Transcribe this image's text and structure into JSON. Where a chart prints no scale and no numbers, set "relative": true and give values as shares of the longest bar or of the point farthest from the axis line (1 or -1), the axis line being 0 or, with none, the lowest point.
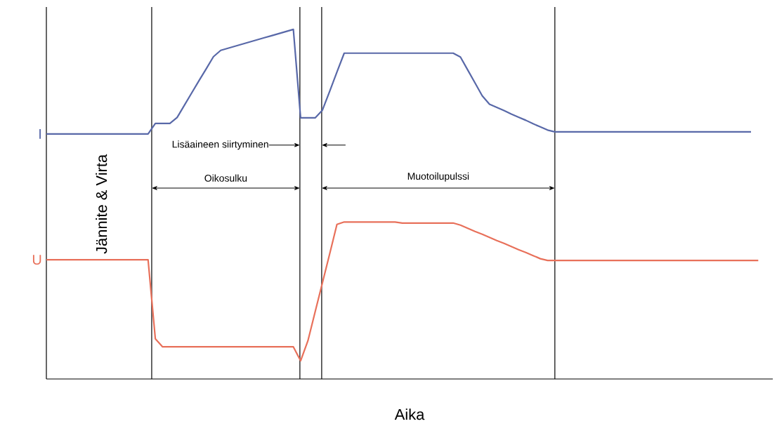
{
  "chart_data": {
    "type": "line",
    "relative": true,
    "xlabel": "Aika",
    "ylabel": "Jännite & Virta",
    "legend": false,
    "grid": "x",
    "marker": "none",
    "line_style": "solid",
    "categories": [
      null,
      null,
      null,
      null,
      null,
      null,
      null,
      null,
      null,
      null,
      null,
      null,
      null,
      null,
      null,
      null,
      null,
      null,
      null,
      null,
      null,
      null,
      null,
      null,
      null,
      null,
      null,
      null,
      null,
      null,
      null,
      null,
      null,
      null,
      null,
      null,
      null,
      null,
      null,
      null,
      null,
      null,
      null,
      null,
      null,
      null,
      null,
      null,
      null,
      null,
      null,
      null,
      null,
      null,
      null,
      null,
      null,
      null,
      null,
      null,
      null,
      null,
      null,
      null,
      null,
      null,
      null,
      null,
      null,
      null,
      null,
      null,
      null,
      null,
      null,
      null,
      null,
      null,
      null,
      null,
      null,
      null,
      null,
      null,
      null,
      null,
      null,
      null,
      null,
      null,
      null,
      null,
      null,
      null,
      null,
      null,
      null,
      null,
      null,
      null
    ],
    "series": [
      {
        "name": "I",
        "color": "#5868a8",
        "values": [
          0.701,
          0.701,
          0.701,
          0.701,
          0.701,
          0.701,
          0.701,
          0.701,
          0.701,
          0.701,
          0.701,
          0.701,
          0.701,
          0.701,
          0.701,
          0.731,
          0.731,
          0.731,
          0.748,
          0.783,
          0.818,
          0.853,
          0.887,
          0.922,
          0.94,
          0.946,
          0.952,
          0.958,
          0.964,
          0.97,
          0.976,
          0.982,
          0.988,
          0.994,
          1.0,
          0.747,
          0.747,
          0.747,
          0.769,
          0.823,
          0.878,
          0.932,
          0.932,
          0.932,
          0.932,
          0.932,
          0.932,
          0.932,
          0.932,
          0.932,
          0.932,
          0.932,
          0.932,
          0.932,
          0.932,
          0.932,
          0.932,
          0.921,
          0.884,
          0.847,
          0.81,
          0.786,
          0.777,
          0.768,
          0.758,
          0.749,
          0.74,
          0.73,
          0.721,
          0.712,
          0.707,
          0.707,
          0.707,
          0.707,
          0.707,
          0.707,
          0.707,
          0.707,
          0.707,
          0.707,
          0.707,
          0.707,
          0.707,
          0.707,
          0.707,
          0.707,
          0.707,
          0.707,
          0.707,
          0.707,
          0.707,
          0.707,
          0.707,
          0.707,
          0.707,
          0.707,
          0.707,
          0.707,
          null,
          null
        ]
      },
      {
        "name": "U",
        "color": "#e8705a",
        "values": [
          0.341,
          0.341,
          0.341,
          0.341,
          0.341,
          0.341,
          0.341,
          0.341,
          0.341,
          0.341,
          0.341,
          0.341,
          0.341,
          0.341,
          0.341,
          0.115,
          0.092,
          0.092,
          0.092,
          0.092,
          0.092,
          0.092,
          0.092,
          0.092,
          0.092,
          0.092,
          0.092,
          0.092,
          0.092,
          0.092,
          0.092,
          0.092,
          0.092,
          0.092,
          0.092,
          0.052,
          0.109,
          0.192,
          0.275,
          0.358,
          0.442,
          0.449,
          0.449,
          0.449,
          0.449,
          0.449,
          0.449,
          0.449,
          0.449,
          0.446,
          0.446,
          0.446,
          0.446,
          0.446,
          0.446,
          0.446,
          0.446,
          0.44,
          0.431,
          0.422,
          0.414,
          0.405,
          0.396,
          0.388,
          0.379,
          0.37,
          0.362,
          0.353,
          0.344,
          0.339,
          0.339,
          0.339,
          0.339,
          0.339,
          0.339,
          0.339,
          0.339,
          0.339,
          0.339,
          0.339,
          0.339,
          0.339,
          0.339,
          0.339,
          0.339,
          0.339,
          0.339,
          0.339,
          0.339,
          0.339,
          0.339,
          0.339,
          0.339,
          0.339,
          0.339,
          0.339,
          0.339,
          0.339,
          0.339,
          null
        ]
      }
    ],
    "annotations": [
      "Lisäaineen siirtyminen",
      "Oikosulku",
      "Muotoilupulssi"
    ]
  }
}
